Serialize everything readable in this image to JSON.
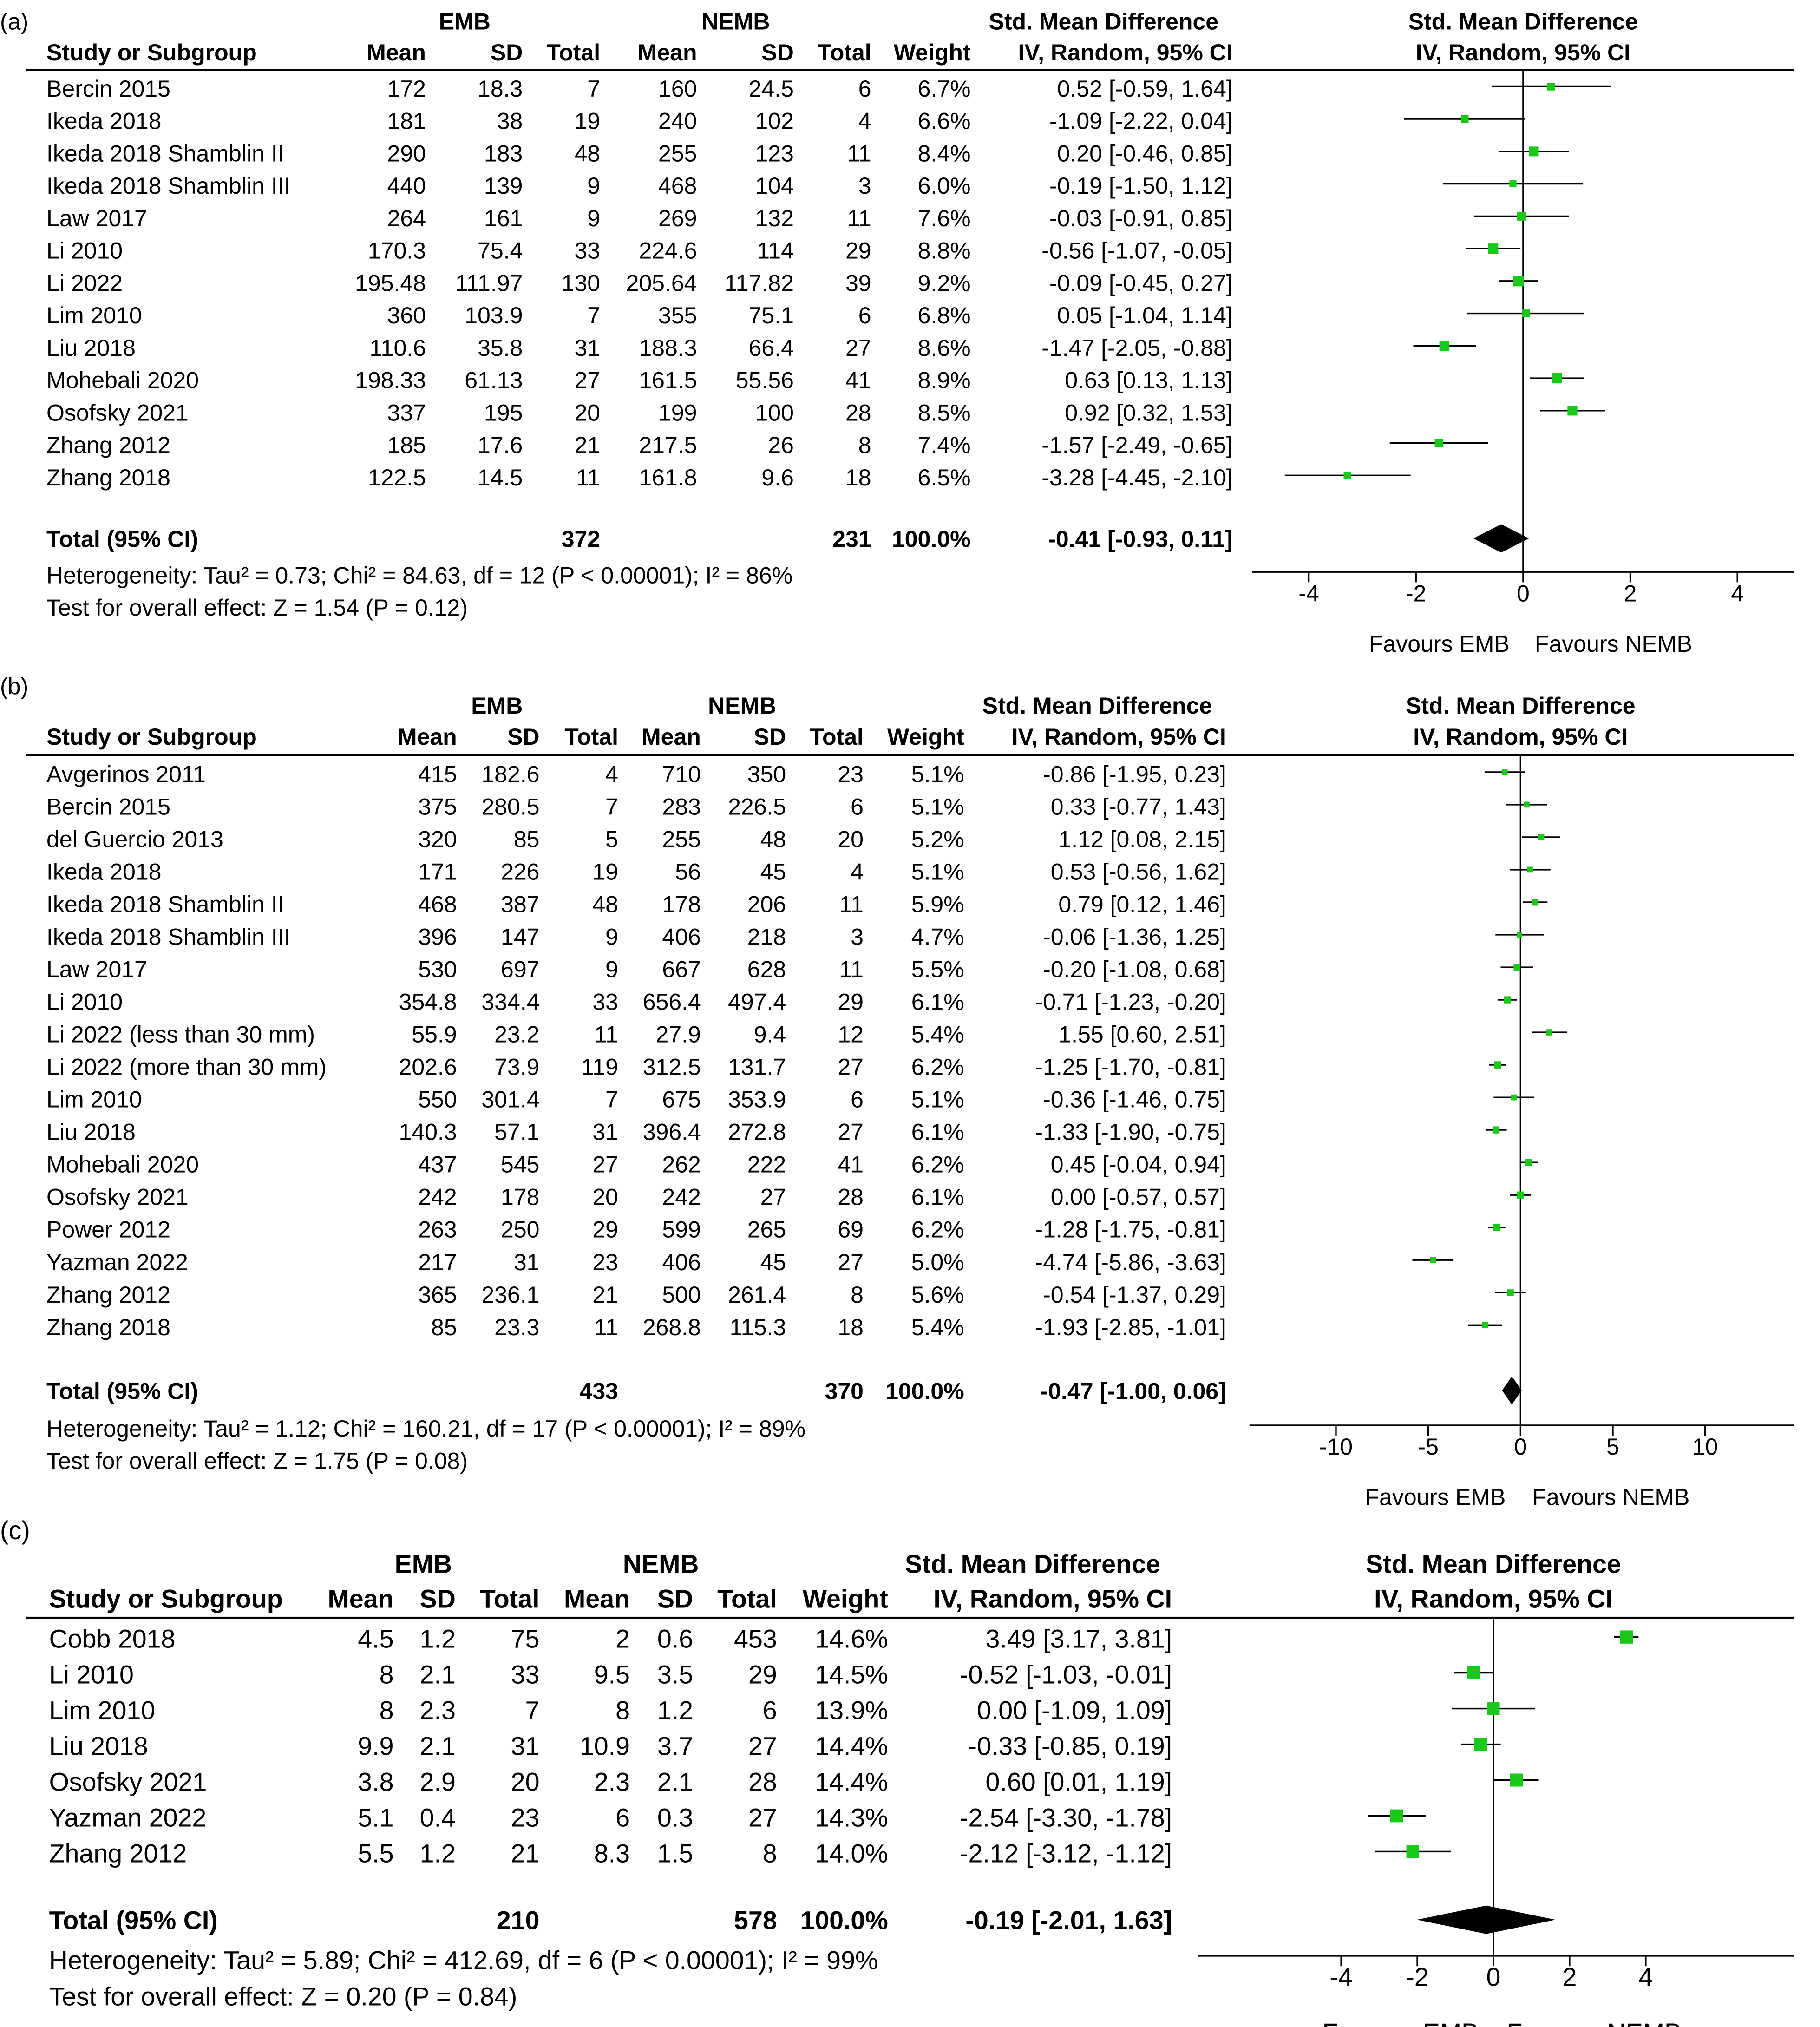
{
  "chart_data": [
    {
      "type": "forest",
      "label": "(a)",
      "group1": "EMB",
      "group2": "NEMB",
      "headers": {
        "study": "Study or Subgroup",
        "mean": "Mean",
        "sd": "SD",
        "total": "Total",
        "weight": "Weight",
        "smd": "Std. Mean Difference",
        "method": "IV, Random, 95% CI"
      },
      "studies": [
        {
          "name": "Bercin 2015",
          "g1": [
            "172",
            "18.3",
            "7"
          ],
          "g2": [
            "160",
            "24.5",
            "6"
          ],
          "weight": "6.7%",
          "smd": 0.52,
          "lo": -0.59,
          "hi": 1.64,
          "w": 6.7
        },
        {
          "name": "Ikeda 2018",
          "g1": [
            "181",
            "38",
            "19"
          ],
          "g2": [
            "240",
            "102",
            "4"
          ],
          "weight": "6.6%",
          "smd": -1.09,
          "lo": -2.22,
          "hi": 0.04,
          "w": 6.6
        },
        {
          "name": "Ikeda 2018 Shamblin II",
          "g1": [
            "290",
            "183",
            "48"
          ],
          "g2": [
            "255",
            "123",
            "11"
          ],
          "weight": "8.4%",
          "smd": 0.2,
          "lo": -0.46,
          "hi": 0.85,
          "w": 8.4
        },
        {
          "name": "Ikeda 2018 Shamblin III",
          "g1": [
            "440",
            "139",
            "9"
          ],
          "g2": [
            "468",
            "104",
            "3"
          ],
          "weight": "6.0%",
          "smd": -0.19,
          "lo": -1.5,
          "hi": 1.12,
          "w": 6.0
        },
        {
          "name": "Law 2017",
          "g1": [
            "264",
            "161",
            "9"
          ],
          "g2": [
            "269",
            "132",
            "11"
          ],
          "weight": "7.6%",
          "smd": -0.03,
          "lo": -0.91,
          "hi": 0.85,
          "w": 7.6
        },
        {
          "name": "Li 2010",
          "g1": [
            "170.3",
            "75.4",
            "33"
          ],
          "g2": [
            "224.6",
            "114",
            "29"
          ],
          "weight": "8.8%",
          "smd": -0.56,
          "lo": -1.07,
          "hi": -0.05,
          "w": 8.8
        },
        {
          "name": "Li 2022",
          "g1": [
            "195.48",
            "111.97",
            "130"
          ],
          "g2": [
            "205.64",
            "117.82",
            "39"
          ],
          "weight": "9.2%",
          "smd": -0.09,
          "lo": -0.45,
          "hi": 0.27,
          "w": 9.2
        },
        {
          "name": "Lim 2010",
          "g1": [
            "360",
            "103.9",
            "7"
          ],
          "g2": [
            "355",
            "75.1",
            "6"
          ],
          "weight": "6.8%",
          "smd": 0.05,
          "lo": -1.04,
          "hi": 1.14,
          "w": 6.8
        },
        {
          "name": "Liu 2018",
          "g1": [
            "110.6",
            "35.8",
            "31"
          ],
          "g2": [
            "188.3",
            "66.4",
            "27"
          ],
          "weight": "8.6%",
          "smd": -1.47,
          "lo": -2.05,
          "hi": -0.88,
          "w": 8.6
        },
        {
          "name": "Mohebali 2020",
          "g1": [
            "198.33",
            "61.13",
            "27"
          ],
          "g2": [
            "161.5",
            "55.56",
            "41"
          ],
          "weight": "8.9%",
          "smd": 0.63,
          "lo": 0.13,
          "hi": 1.13,
          "w": 8.9
        },
        {
          "name": "Osofsky 2021",
          "g1": [
            "337",
            "195",
            "20"
          ],
          "g2": [
            "199",
            "100",
            "28"
          ],
          "weight": "8.5%",
          "smd": 0.92,
          "lo": 0.32,
          "hi": 1.53,
          "w": 8.5
        },
        {
          "name": "Zhang 2012",
          "g1": [
            "185",
            "17.6",
            "21"
          ],
          "g2": [
            "217.5",
            "26",
            "8"
          ],
          "weight": "7.4%",
          "smd": -1.57,
          "lo": -2.49,
          "hi": -0.65,
          "w": 7.4
        },
        {
          "name": "Zhang 2018",
          "g1": [
            "122.5",
            "14.5",
            "11"
          ],
          "g2": [
            "161.8",
            "9.6",
            "18"
          ],
          "weight": "6.5%",
          "smd": -3.28,
          "lo": -4.45,
          "hi": -2.1,
          "w": 6.5
        }
      ],
      "total": {
        "label": "Total (95% CI)",
        "n1": "372",
        "n2": "231",
        "weight": "100.0%",
        "smd": -0.41,
        "lo": -0.93,
        "hi": 0.11
      },
      "heterogeneity": "Heterogeneity: Tau² = 0.73; Chi² = 84.63, df = 12 (P < 0.00001); I² = 86%",
      "overall": "Test for overall effect: Z = 1.54 (P = 0.12)",
      "xlim": [
        -5,
        5
      ],
      "ticks": [
        -4,
        -2,
        0,
        2,
        4
      ],
      "favours_left": "Favours EMB",
      "favours_right": "Favours NEMB"
    },
    {
      "type": "forest",
      "label": "(b)",
      "group1": "EMB",
      "group2": "NEMB",
      "headers": {
        "study": "Study or Subgroup",
        "mean": "Mean",
        "sd": "SD",
        "total": "Total",
        "weight": "Weight",
        "smd": "Std. Mean Difference",
        "method": "IV, Random, 95% CI"
      },
      "studies": [
        {
          "name": "Avgerinos 2011",
          "g1": [
            "415",
            "182.6",
            "4"
          ],
          "g2": [
            "710",
            "350",
            "23"
          ],
          "weight": "5.1%",
          "smd": -0.86,
          "lo": -1.95,
          "hi": 0.23,
          "w": 5.1
        },
        {
          "name": "Bercin 2015",
          "g1": [
            "375",
            "280.5",
            "7"
          ],
          "g2": [
            "283",
            "226.5",
            "6"
          ],
          "weight": "5.1%",
          "smd": 0.33,
          "lo": -0.77,
          "hi": 1.43,
          "w": 5.1
        },
        {
          "name": "del Guercio 2013",
          "g1": [
            "320",
            "85",
            "5"
          ],
          "g2": [
            "255",
            "48",
            "20"
          ],
          "weight": "5.2%",
          "smd": 1.12,
          "lo": 0.08,
          "hi": 2.15,
          "w": 5.2
        },
        {
          "name": "Ikeda 2018",
          "g1": [
            "171",
            "226",
            "19"
          ],
          "g2": [
            "56",
            "45",
            "4"
          ],
          "weight": "5.1%",
          "smd": 0.53,
          "lo": -0.56,
          "hi": 1.62,
          "w": 5.1
        },
        {
          "name": "Ikeda 2018 Shamblin II",
          "g1": [
            "468",
            "387",
            "48"
          ],
          "g2": [
            "178",
            "206",
            "11"
          ],
          "weight": "5.9%",
          "smd": 0.79,
          "lo": 0.12,
          "hi": 1.46,
          "w": 5.9
        },
        {
          "name": "Ikeda 2018 Shamblin III",
          "g1": [
            "396",
            "147",
            "9"
          ],
          "g2": [
            "406",
            "218",
            "3"
          ],
          "weight": "4.7%",
          "smd": -0.06,
          "lo": -1.36,
          "hi": 1.25,
          "w": 4.7
        },
        {
          "name": "Law 2017",
          "g1": [
            "530",
            "697",
            "9"
          ],
          "g2": [
            "667",
            "628",
            "11"
          ],
          "weight": "5.5%",
          "smd": -0.2,
          "lo": -1.08,
          "hi": 0.68,
          "w": 5.5
        },
        {
          "name": "Li 2010",
          "g1": [
            "354.8",
            "334.4",
            "33"
          ],
          "g2": [
            "656.4",
            "497.4",
            "29"
          ],
          "weight": "6.1%",
          "smd": -0.71,
          "lo": -1.23,
          "hi": -0.2,
          "w": 6.1
        },
        {
          "name": "Li 2022 (less than 30 mm)",
          "g1": [
            "55.9",
            "23.2",
            "11"
          ],
          "g2": [
            "27.9",
            "9.4",
            "12"
          ],
          "weight": "5.4%",
          "smd": 1.55,
          "lo": 0.6,
          "hi": 2.51,
          "w": 5.4
        },
        {
          "name": "Li 2022 (more than 30 mm)",
          "g1": [
            "202.6",
            "73.9",
            "119"
          ],
          "g2": [
            "312.5",
            "131.7",
            "27"
          ],
          "weight": "6.2%",
          "smd": -1.25,
          "lo": -1.7,
          "hi": -0.81,
          "w": 6.2
        },
        {
          "name": "Lim 2010",
          "g1": [
            "550",
            "301.4",
            "7"
          ],
          "g2": [
            "675",
            "353.9",
            "6"
          ],
          "weight": "5.1%",
          "smd": -0.36,
          "lo": -1.46,
          "hi": 0.75,
          "w": 5.1
        },
        {
          "name": "Liu 2018",
          "g1": [
            "140.3",
            "57.1",
            "31"
          ],
          "g2": [
            "396.4",
            "272.8",
            "27"
          ],
          "weight": "6.1%",
          "smd": -1.33,
          "lo": -1.9,
          "hi": -0.75,
          "w": 6.1
        },
        {
          "name": "Mohebali 2020",
          "g1": [
            "437",
            "545",
            "27"
          ],
          "g2": [
            "262",
            "222",
            "41"
          ],
          "weight": "6.2%",
          "smd": 0.45,
          "lo": -0.04,
          "hi": 0.94,
          "w": 6.2
        },
        {
          "name": "Osofsky 2021",
          "g1": [
            "242",
            "178",
            "20"
          ],
          "g2": [
            "242",
            "27",
            "28"
          ],
          "weight": "6.1%",
          "smd": 0.0,
          "lo": -0.57,
          "hi": 0.57,
          "w": 6.1
        },
        {
          "name": "Power 2012",
          "g1": [
            "263",
            "250",
            "29"
          ],
          "g2": [
            "599",
            "265",
            "69"
          ],
          "weight": "6.2%",
          "smd": -1.28,
          "lo": -1.75,
          "hi": -0.81,
          "w": 6.2
        },
        {
          "name": "Yazman 2022",
          "g1": [
            "217",
            "31",
            "23"
          ],
          "g2": [
            "406",
            "45",
            "27"
          ],
          "weight": "5.0%",
          "smd": -4.74,
          "lo": -5.86,
          "hi": -3.63,
          "w": 5.0
        },
        {
          "name": "Zhang 2012",
          "g1": [
            "365",
            "236.1",
            "21"
          ],
          "g2": [
            "500",
            "261.4",
            "8"
          ],
          "weight": "5.6%",
          "smd": -0.54,
          "lo": -1.37,
          "hi": 0.29,
          "w": 5.6
        },
        {
          "name": "Zhang 2018",
          "g1": [
            "85",
            "23.3",
            "11"
          ],
          "g2": [
            "268.8",
            "115.3",
            "18"
          ],
          "weight": "5.4%",
          "smd": -1.93,
          "lo": -2.85,
          "hi": -1.01,
          "w": 5.4
        }
      ],
      "total": {
        "label": "Total (95% CI)",
        "n1": "433",
        "n2": "370",
        "weight": "100.0%",
        "smd": -0.47,
        "lo": -1.0,
        "hi": 0.06
      },
      "heterogeneity": "Heterogeneity: Tau² = 1.12; Chi² = 160.21, df = 17 (P < 0.00001); I² = 89%",
      "overall": "Test for overall effect: Z = 1.75 (P = 0.08)",
      "xlim": [
        -15,
        15
      ],
      "ticks": [
        -10,
        -5,
        0,
        5,
        10
      ],
      "favours_left": "Favours EMB",
      "favours_right": "Favours NEMB"
    },
    {
      "type": "forest",
      "label": "(c)",
      "group1": "EMB",
      "group2": "NEMB",
      "headers": {
        "study": "Study or Subgroup",
        "mean": "Mean",
        "sd": "SD",
        "total": "Total",
        "weight": "Weight",
        "smd": "Std. Mean Difference",
        "method": "IV, Random, 95% CI"
      },
      "studies": [
        {
          "name": "Cobb 2018",
          "g1": [
            "4.5",
            "1.2",
            "75"
          ],
          "g2": [
            "2",
            "0.6",
            "453"
          ],
          "weight": "14.6%",
          "smd": 3.49,
          "lo": 3.17,
          "hi": 3.81,
          "w": 14.6
        },
        {
          "name": "Li 2010",
          "g1": [
            "8",
            "2.1",
            "33"
          ],
          "g2": [
            "9.5",
            "3.5",
            "29"
          ],
          "weight": "14.5%",
          "smd": -0.52,
          "lo": -1.03,
          "hi": -0.01,
          "w": 14.5
        },
        {
          "name": "Lim 2010",
          "g1": [
            "8",
            "2.3",
            "7"
          ],
          "g2": [
            "8",
            "1.2",
            "6"
          ],
          "weight": "13.9%",
          "smd": 0.0,
          "lo": -1.09,
          "hi": 1.09,
          "w": 13.9
        },
        {
          "name": "Liu 2018",
          "g1": [
            "9.9",
            "2.1",
            "31"
          ],
          "g2": [
            "10.9",
            "3.7",
            "27"
          ],
          "weight": "14.4%",
          "smd": -0.33,
          "lo": -0.85,
          "hi": 0.19,
          "w": 14.4
        },
        {
          "name": "Osofsky 2021",
          "g1": [
            "3.8",
            "2.9",
            "20"
          ],
          "g2": [
            "2.3",
            "2.1",
            "28"
          ],
          "weight": "14.4%",
          "smd": 0.6,
          "lo": 0.01,
          "hi": 1.19,
          "w": 14.4
        },
        {
          "name": "Yazman 2022",
          "g1": [
            "5.1",
            "0.4",
            "23"
          ],
          "g2": [
            "6",
            "0.3",
            "27"
          ],
          "weight": "14.3%",
          "smd": -2.54,
          "lo": -3.3,
          "hi": -1.78,
          "w": 14.3
        },
        {
          "name": "Zhang 2012",
          "g1": [
            "5.5",
            "1.2",
            "21"
          ],
          "g2": [
            "8.3",
            "1.5",
            "8"
          ],
          "weight": "14.0%",
          "smd": -2.12,
          "lo": -3.12,
          "hi": -1.12,
          "w": 14.0
        }
      ],
      "total": {
        "label": "Total (95% CI)",
        "n1": "210",
        "n2": "578",
        "weight": "100.0%",
        "smd": -0.19,
        "lo": -2.01,
        "hi": 1.63
      },
      "heterogeneity": "Heterogeneity: Tau² = 5.89; Chi² = 412.69, df = 6 (P < 0.00001); I² = 99%",
      "overall": "Test for overall effect: Z = 0.20 (P = 0.84)",
      "xlim": [
        -8,
        6
      ],
      "ticks": [
        -4,
        -2,
        0,
        2,
        4
      ],
      "favours_left": "Favours EMB",
      "favours_right": "Favours NEMB"
    }
  ],
  "colors": {
    "marker": "#19c819",
    "line": "#000000"
  }
}
